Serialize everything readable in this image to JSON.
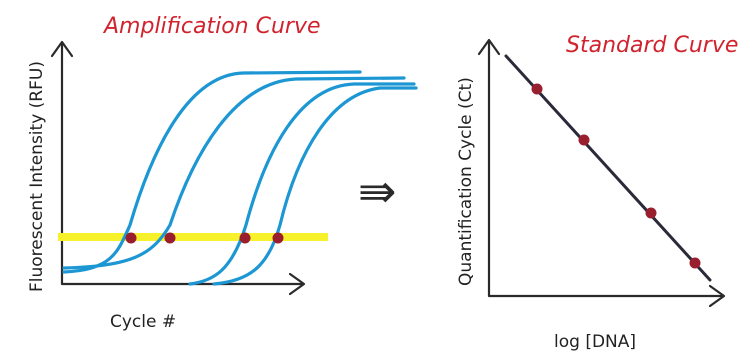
{
  "left_panel": {
    "title": "Amplification Curve",
    "xlabel": "Cycle #",
    "ylabel": "Fluorescent Intensity (RFU)"
  },
  "right_panel": {
    "title": "Standard Curve",
    "xlabel": "log [DNA]",
    "ylabel": "Quantification Cycle (Ct)"
  },
  "arrow_symbol": "⇛",
  "colors": {
    "title": "#d1232e",
    "curve": "#1c97d3",
    "threshold": "#f6f12a",
    "dot": "#9a1f2e",
    "axis": "#2a2a2a",
    "std_line": "#2a2a3a"
  },
  "amplification_curves": [
    {
      "name": "curve-1",
      "crossing_order": 1
    },
    {
      "name": "curve-2",
      "crossing_order": 2
    },
    {
      "name": "curve-3",
      "crossing_order": 3
    },
    {
      "name": "curve-4",
      "crossing_order": 4
    }
  ],
  "standard_points": [
    {
      "order": 1
    },
    {
      "order": 2
    },
    {
      "order": 3
    },
    {
      "order": 4
    }
  ]
}
